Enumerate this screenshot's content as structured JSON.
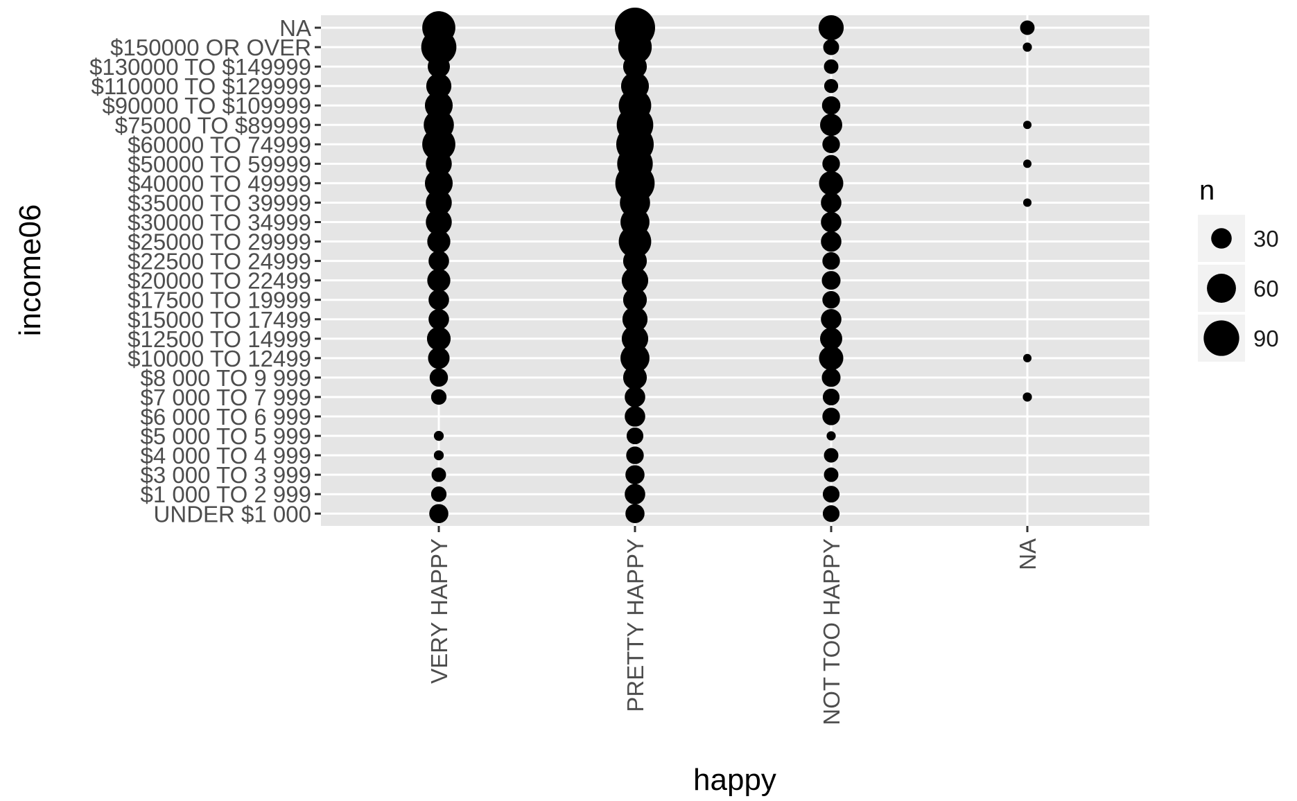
{
  "chart_data": {
    "type": "scatter",
    "title": "",
    "xlabel": "happy",
    "ylabel": "income06",
    "x_categories": [
      "VERY HAPPY",
      "PRETTY HAPPY",
      "NOT TOO HAPPY",
      "NA"
    ],
    "y_categories": [
      "UNDER $1 000",
      "$1 000 TO 2 999",
      "$3 000 TO 3 999",
      "$4 000 TO 4 999",
      "$5 000 TO 5 999",
      "$6 000 TO 6 999",
      "$7 000 TO 7 999",
      "$8 000 TO 9 999",
      "$10000 TO 12499",
      "$12500 TO 14999",
      "$15000 TO 17499",
      "$17500 TO 19999",
      "$20000 TO 22499",
      "$22500 TO 24999",
      "$25000 TO 29999",
      "$30000 TO 34999",
      "$35000 TO 39999",
      "$40000 TO 49999",
      "$50000 TO 59999",
      "$60000 TO 74999",
      "$75000 TO $89999",
      "$90000 TO $109999",
      "$110000 TO $129999",
      "$130000 TO $149999",
      "$150000 OR OVER",
      "NA"
    ],
    "points": [
      {
        "x": "VERY HAPPY",
        "y": "UNDER $1 000",
        "n": 26
      },
      {
        "x": "VERY HAPPY",
        "y": "$1 000 TO 2 999",
        "n": 17
      },
      {
        "x": "VERY HAPPY",
        "y": "$3 000 TO 3 999",
        "n": 15
      },
      {
        "x": "VERY HAPPY",
        "y": "$4 000 TO 4 999",
        "n": 7
      },
      {
        "x": "VERY HAPPY",
        "y": "$5 000 TO 5 999",
        "n": 7
      },
      {
        "x": "VERY HAPPY",
        "y": "$7 000 TO 7 999",
        "n": 17
      },
      {
        "x": "VERY HAPPY",
        "y": "$8 000 TO 9 999",
        "n": 24
      },
      {
        "x": "VERY HAPPY",
        "y": "$10000 TO 12499",
        "n": 33
      },
      {
        "x": "VERY HAPPY",
        "y": "$12500 TO 14999",
        "n": 40
      },
      {
        "x": "VERY HAPPY",
        "y": "$15000 TO 17499",
        "n": 30
      },
      {
        "x": "VERY HAPPY",
        "y": "$17500 TO 19999",
        "n": 30
      },
      {
        "x": "VERY HAPPY",
        "y": "$20000 TO 22499",
        "n": 38
      },
      {
        "x": "VERY HAPPY",
        "y": "$22500 TO 24999",
        "n": 30
      },
      {
        "x": "VERY HAPPY",
        "y": "$25000 TO 29999",
        "n": 38
      },
      {
        "x": "VERY HAPPY",
        "y": "$30000 TO 34999",
        "n": 48
      },
      {
        "x": "VERY HAPPY",
        "y": "$35000 TO 39999",
        "n": 48
      },
      {
        "x": "VERY HAPPY",
        "y": "$40000 TO 49999",
        "n": 55
      },
      {
        "x": "VERY HAPPY",
        "y": "$50000 TO 59999",
        "n": 48
      },
      {
        "x": "VERY HAPPY",
        "y": "$60000 TO 74999",
        "n": 78
      },
      {
        "x": "VERY HAPPY",
        "y": "$75000 TO $89999",
        "n": 65
      },
      {
        "x": "VERY HAPPY",
        "y": "$90000 TO $109999",
        "n": 55
      },
      {
        "x": "VERY HAPPY",
        "y": "$110000 TO $129999",
        "n": 45
      },
      {
        "x": "VERY HAPPY",
        "y": "$130000 TO $149999",
        "n": 35
      },
      {
        "x": "VERY HAPPY",
        "y": "$150000 OR OVER",
        "n": 88
      },
      {
        "x": "VERY HAPPY",
        "y": "NA",
        "n": 78
      },
      {
        "x": "PRETTY HAPPY",
        "y": "UNDER $1 000",
        "n": 26
      },
      {
        "x": "PRETTY HAPPY",
        "y": "$1 000 TO 2 999",
        "n": 30
      },
      {
        "x": "PRETTY HAPPY",
        "y": "$3 000 TO 3 999",
        "n": 26
      },
      {
        "x": "PRETTY HAPPY",
        "y": "$4 000 TO 4 999",
        "n": 22
      },
      {
        "x": "PRETTY HAPPY",
        "y": "$5 000 TO 5 999",
        "n": 20
      },
      {
        "x": "PRETTY HAPPY",
        "y": "$6 000 TO 6 999",
        "n": 30
      },
      {
        "x": "PRETTY HAPPY",
        "y": "$7 000 TO 7 999",
        "n": 30
      },
      {
        "x": "PRETTY HAPPY",
        "y": "$8 000 TO 9 999",
        "n": 40
      },
      {
        "x": "PRETTY HAPPY",
        "y": "$10000 TO 12499",
        "n": 60
      },
      {
        "x": "PRETTY HAPPY",
        "y": "$12500 TO 14999",
        "n": 50
      },
      {
        "x": "PRETTY HAPPY",
        "y": "$15000 TO 17499",
        "n": 45
      },
      {
        "x": "PRETTY HAPPY",
        "y": "$17500 TO 19999",
        "n": 40
      },
      {
        "x": "PRETTY HAPPY",
        "y": "$20000 TO 22499",
        "n": 50
      },
      {
        "x": "PRETTY HAPPY",
        "y": "$22500 TO 24999",
        "n": 40
      },
      {
        "x": "PRETTY HAPPY",
        "y": "$25000 TO 29999",
        "n": 75
      },
      {
        "x": "PRETTY HAPPY",
        "y": "$30000 TO 34999",
        "n": 60
      },
      {
        "x": "PRETTY HAPPY",
        "y": "$35000 TO 39999",
        "n": 65
      },
      {
        "x": "PRETTY HAPPY",
        "y": "$40000 TO 49999",
        "n": 110
      },
      {
        "x": "PRETTY HAPPY",
        "y": "$50000 TO 59999",
        "n": 90
      },
      {
        "x": "PRETTY HAPPY",
        "y": "$60000 TO 74999",
        "n": 100
      },
      {
        "x": "PRETTY HAPPY",
        "y": "$75000 TO $89999",
        "n": 95
      },
      {
        "x": "PRETTY HAPPY",
        "y": "$90000 TO $109999",
        "n": 75
      },
      {
        "x": "PRETTY HAPPY",
        "y": "$110000 TO $129999",
        "n": 55
      },
      {
        "x": "PRETTY HAPPY",
        "y": "$130000 TO $149999",
        "n": 40
      },
      {
        "x": "PRETTY HAPPY",
        "y": "$150000 OR OVER",
        "n": 80
      },
      {
        "x": "PRETTY HAPPY",
        "y": "NA",
        "n": 115
      },
      {
        "x": "NOT TOO HAPPY",
        "y": "UNDER $1 000",
        "n": 20
      },
      {
        "x": "NOT TOO HAPPY",
        "y": "$1 000 TO 2 999",
        "n": 20
      },
      {
        "x": "NOT TOO HAPPY",
        "y": "$3 000 TO 3 999",
        "n": 15
      },
      {
        "x": "NOT TOO HAPPY",
        "y": "$4 000 TO 4 999",
        "n": 15
      },
      {
        "x": "NOT TOO HAPPY",
        "y": "$5 000 TO 5 999",
        "n": 6
      },
      {
        "x": "NOT TOO HAPPY",
        "y": "$6 000 TO 6 999",
        "n": 22
      },
      {
        "x": "NOT TOO HAPPY",
        "y": "$7 000 TO 7 999",
        "n": 20
      },
      {
        "x": "NOT TOO HAPPY",
        "y": "$8 000 TO 9 999",
        "n": 25
      },
      {
        "x": "NOT TOO HAPPY",
        "y": "$10000 TO 12499",
        "n": 42
      },
      {
        "x": "NOT TOO HAPPY",
        "y": "$12500 TO 14999",
        "n": 35
      },
      {
        "x": "NOT TOO HAPPY",
        "y": "$15000 TO 17499",
        "n": 30
      },
      {
        "x": "NOT TOO HAPPY",
        "y": "$17500 TO 19999",
        "n": 22
      },
      {
        "x": "NOT TOO HAPPY",
        "y": "$20000 TO 22499",
        "n": 25
      },
      {
        "x": "NOT TOO HAPPY",
        "y": "$22500 TO 24999",
        "n": 22
      },
      {
        "x": "NOT TOO HAPPY",
        "y": "$25000 TO 29999",
        "n": 30
      },
      {
        "x": "NOT TOO HAPPY",
        "y": "$30000 TO 34999",
        "n": 30
      },
      {
        "x": "NOT TOO HAPPY",
        "y": "$35000 TO 39999",
        "n": 30
      },
      {
        "x": "NOT TOO HAPPY",
        "y": "$40000 TO 49999",
        "n": 42
      },
      {
        "x": "NOT TOO HAPPY",
        "y": "$50000 TO 59999",
        "n": 22
      },
      {
        "x": "NOT TOO HAPPY",
        "y": "$60000 TO 74999",
        "n": 22
      },
      {
        "x": "NOT TOO HAPPY",
        "y": "$75000 TO $89999",
        "n": 35
      },
      {
        "x": "NOT TOO HAPPY",
        "y": "$90000 TO $109999",
        "n": 24
      },
      {
        "x": "NOT TOO HAPPY",
        "y": "$110000 TO $129999",
        "n": 14
      },
      {
        "x": "NOT TOO HAPPY",
        "y": "$130000 TO $149999",
        "n": 15
      },
      {
        "x": "NOT TOO HAPPY",
        "y": "$150000 OR OVER",
        "n": 18
      },
      {
        "x": "NOT TOO HAPPY",
        "y": "NA",
        "n": 45
      },
      {
        "x": "NA",
        "y": "$7 000 TO 7 999",
        "n": 6
      },
      {
        "x": "NA",
        "y": "$10000 TO 12499",
        "n": 5
      },
      {
        "x": "NA",
        "y": "$35000 TO 39999",
        "n": 5
      },
      {
        "x": "NA",
        "y": "$50000 TO 59999",
        "n": 5
      },
      {
        "x": "NA",
        "y": "$75000 TO $89999",
        "n": 5
      },
      {
        "x": "NA",
        "y": "$150000 OR OVER",
        "n": 6
      },
      {
        "x": "NA",
        "y": "NA",
        "n": 15
      }
    ],
    "size_legend": {
      "title": "n",
      "breaks": [
        30,
        60,
        90
      ],
      "labels": [
        "30",
        "60",
        "90"
      ]
    },
    "grid": true,
    "legend_position": "right",
    "colors": {
      "panel_background": "#e5e5e5",
      "grid_line": "#ffffff",
      "point": "#000000",
      "axis_text": "#4d4d4d",
      "axis_title": "#000000",
      "tick": "#333333",
      "legend_key_background": "#f2f2f2"
    }
  }
}
